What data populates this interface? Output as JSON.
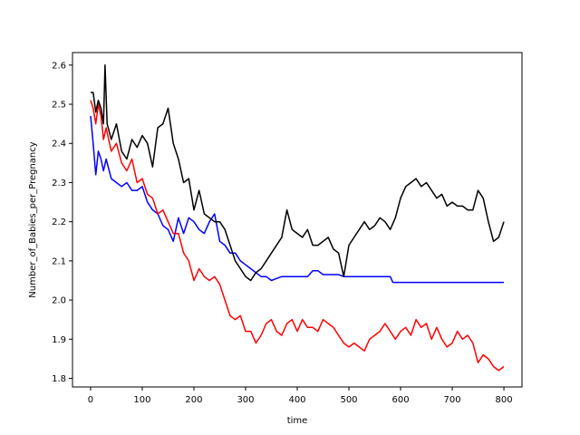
{
  "chart_data": {
    "type": "line",
    "title": "",
    "xlabel": "time",
    "ylabel": "Number_of_Babies_per_Pregnancy",
    "xlim": [
      -35,
      835
    ],
    "ylim": [
      1.778,
      2.632
    ],
    "xticks": [
      0,
      100,
      200,
      300,
      400,
      500,
      600,
      700,
      800
    ],
    "yticks": [
      1.8,
      1.9,
      2.0,
      2.1,
      2.2,
      2.3,
      2.4,
      2.5,
      2.6
    ],
    "xtick_labels": [
      "0",
      "100",
      "200",
      "300",
      "400",
      "500",
      "600",
      "700",
      "800"
    ],
    "ytick_labels": [
      "1.8",
      "1.9",
      "2.0",
      "2.1",
      "2.2",
      "2.3",
      "2.4",
      "2.5",
      "2.6"
    ],
    "grid": false,
    "legend": "none",
    "series": [
      {
        "color": "#0000ff",
        "x": [
          0,
          5,
          10,
          15,
          20,
          25,
          30,
          40,
          50,
          60,
          70,
          80,
          90,
          100,
          110,
          120,
          130,
          140,
          150,
          160,
          170,
          180,
          190,
          200,
          210,
          220,
          230,
          240,
          250,
          260,
          270,
          280,
          290,
          300,
          310,
          320,
          330,
          340,
          350,
          360,
          370,
          380,
          390,
          400,
          410,
          420,
          430,
          440,
          450,
          460,
          470,
          480,
          490,
          500,
          550,
          580,
          585,
          600,
          700,
          800
        ],
        "y": [
          2.47,
          2.4,
          2.32,
          2.38,
          2.36,
          2.33,
          2.36,
          2.31,
          2.3,
          2.29,
          2.3,
          2.28,
          2.28,
          2.29,
          2.25,
          2.23,
          2.22,
          2.19,
          2.18,
          2.15,
          2.21,
          2.17,
          2.21,
          2.2,
          2.18,
          2.17,
          2.2,
          2.22,
          2.15,
          2.14,
          2.12,
          2.12,
          2.1,
          2.09,
          2.08,
          2.07,
          2.06,
          2.06,
          2.05,
          2.055,
          2.06,
          2.06,
          2.06,
          2.06,
          2.06,
          2.06,
          2.075,
          2.075,
          2.065,
          2.065,
          2.065,
          2.065,
          2.06,
          2.06,
          2.06,
          2.06,
          2.045,
          2.045,
          2.045,
          2.045
        ]
      },
      {
        "color": "#ff0000",
        "x": [
          0,
          5,
          10,
          15,
          20,
          25,
          30,
          40,
          50,
          60,
          70,
          80,
          90,
          100,
          110,
          120,
          130,
          140,
          150,
          160,
          170,
          180,
          190,
          200,
          210,
          220,
          230,
          240,
          250,
          260,
          270,
          280,
          290,
          300,
          310,
          320,
          330,
          340,
          350,
          360,
          370,
          380,
          390,
          400,
          410,
          420,
          430,
          440,
          450,
          460,
          470,
          480,
          490,
          500,
          510,
          520,
          530,
          540,
          550,
          560,
          570,
          580,
          590,
          600,
          610,
          620,
          630,
          640,
          650,
          660,
          670,
          680,
          690,
          700,
          710,
          720,
          730,
          740,
          750,
          760,
          770,
          780,
          790,
          800
        ],
        "y": [
          2.51,
          2.49,
          2.45,
          2.5,
          2.47,
          2.41,
          2.44,
          2.38,
          2.4,
          2.35,
          2.33,
          2.36,
          2.3,
          2.31,
          2.27,
          2.26,
          2.22,
          2.23,
          2.2,
          2.17,
          2.17,
          2.12,
          2.1,
          2.05,
          2.08,
          2.06,
          2.05,
          2.06,
          2.04,
          2.0,
          1.96,
          1.95,
          1.96,
          1.92,
          1.92,
          1.89,
          1.91,
          1.94,
          1.95,
          1.92,
          1.91,
          1.94,
          1.95,
          1.92,
          1.95,
          1.93,
          1.93,
          1.92,
          1.95,
          1.94,
          1.93,
          1.91,
          1.89,
          1.88,
          1.89,
          1.88,
          1.87,
          1.9,
          1.91,
          1.92,
          1.94,
          1.92,
          1.9,
          1.92,
          1.93,
          1.91,
          1.95,
          1.93,
          1.94,
          1.9,
          1.93,
          1.9,
          1.88,
          1.89,
          1.92,
          1.9,
          1.91,
          1.89,
          1.84,
          1.86,
          1.85,
          1.83,
          1.82,
          1.83
        ]
      },
      {
        "color": "#000000",
        "x": [
          0,
          5,
          10,
          15,
          20,
          25,
          28,
          32,
          40,
          50,
          60,
          70,
          80,
          90,
          100,
          110,
          120,
          130,
          140,
          150,
          160,
          170,
          180,
          190,
          200,
          210,
          220,
          230,
          240,
          250,
          260,
          270,
          280,
          290,
          300,
          310,
          320,
          330,
          340,
          350,
          360,
          370,
          380,
          390,
          400,
          410,
          420,
          430,
          440,
          450,
          460,
          470,
          480,
          490,
          500,
          510,
          520,
          530,
          540,
          550,
          560,
          570,
          580,
          590,
          600,
          610,
          620,
          630,
          640,
          650,
          660,
          670,
          680,
          690,
          700,
          710,
          720,
          730,
          740,
          750,
          760,
          770,
          780,
          790,
          800
        ],
        "y": [
          2.53,
          2.53,
          2.48,
          2.51,
          2.49,
          2.45,
          2.6,
          2.45,
          2.41,
          2.45,
          2.38,
          2.36,
          2.41,
          2.39,
          2.42,
          2.4,
          2.34,
          2.44,
          2.45,
          2.49,
          2.4,
          2.36,
          2.3,
          2.31,
          2.23,
          2.28,
          2.22,
          2.21,
          2.2,
          2.2,
          2.18,
          2.14,
          2.1,
          2.08,
          2.06,
          2.05,
          2.07,
          2.08,
          2.1,
          2.12,
          2.14,
          2.16,
          2.23,
          2.18,
          2.17,
          2.16,
          2.18,
          2.14,
          2.14,
          2.15,
          2.16,
          2.13,
          2.12,
          2.06,
          2.14,
          2.16,
          2.18,
          2.2,
          2.18,
          2.19,
          2.21,
          2.2,
          2.18,
          2.21,
          2.26,
          2.29,
          2.3,
          2.31,
          2.29,
          2.3,
          2.28,
          2.26,
          2.27,
          2.24,
          2.25,
          2.24,
          2.24,
          2.23,
          2.23,
          2.28,
          2.26,
          2.2,
          2.15,
          2.16,
          2.2
        ]
      }
    ]
  }
}
